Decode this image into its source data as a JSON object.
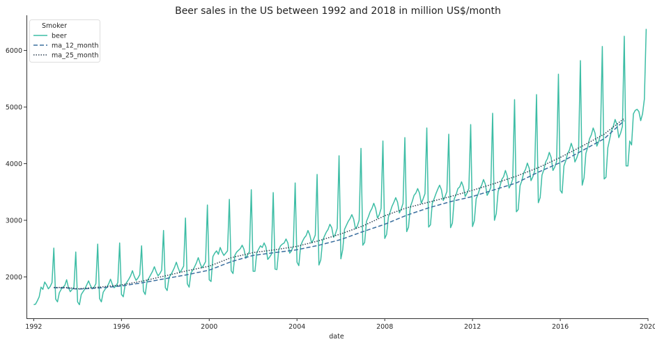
{
  "chart_data": {
    "type": "line",
    "title": "Beer sales in the US between 1992 and 2018 in million US$/month",
    "xlabel": "date",
    "ylabel": "",
    "xlim": [
      1991.67,
      2020.0
    ],
    "ylim": [
      1270,
      6620
    ],
    "x_ticks": [
      1992,
      1996,
      2000,
      2004,
      2008,
      2012,
      2016,
      2020
    ],
    "y_ticks": [
      2000,
      3000,
      4000,
      5000,
      6000
    ],
    "grid": false,
    "legend": {
      "title": "Smoker",
      "placement": "top-left"
    },
    "series": [
      {
        "name": "beer",
        "color": "#3dbda5",
        "style": "solid",
        "x_start": 1992.0,
        "x_step": 0.0833333,
        "values": [
          1510,
          1520,
          1580,
          1650,
          1820,
          1780,
          1910,
          1860,
          1790,
          1830,
          1900,
          2510,
          1610,
          1560,
          1720,
          1780,
          1820,
          1850,
          1950,
          1810,
          1740,
          1780,
          1820,
          2440,
          1560,
          1510,
          1690,
          1740,
          1790,
          1860,
          1930,
          1850,
          1790,
          1820,
          1880,
          2580,
          1620,
          1560,
          1730,
          1780,
          1820,
          1880,
          1960,
          1870,
          1810,
          1840,
          1900,
          2600,
          1690,
          1650,
          1860,
          1910,
          1960,
          2020,
          2110,
          2010,
          1940,
          1980,
          2040,
          2550,
          1750,
          1690,
          1930,
          1980,
          2040,
          2100,
          2180,
          2090,
          2020,
          2060,
          2120,
          2820,
          1810,
          1760,
          1990,
          2040,
          2100,
          2170,
          2260,
          2160,
          2080,
          2130,
          2190,
          3040,
          1880,
          1820,
          2070,
          2120,
          2180,
          2250,
          2340,
          2240,
          2160,
          2210,
          2270,
          3270,
          1950,
          1920,
          2360,
          2420,
          2460,
          2400,
          2520,
          2440,
          2380,
          2420,
          2460,
          3370,
          2110,
          2060,
          2380,
          2440,
          2470,
          2500,
          2560,
          2490,
          2330,
          2390,
          2450,
          3540,
          2100,
          2100,
          2430,
          2490,
          2550,
          2520,
          2600,
          2530,
          2310,
          2350,
          2400,
          3490,
          2140,
          2130,
          2480,
          2550,
          2580,
          2600,
          2670,
          2600,
          2420,
          2460,
          2550,
          3660,
          2260,
          2200,
          2550,
          2630,
          2690,
          2730,
          2820,
          2740,
          2600,
          2660,
          2740,
          3810,
          2210,
          2300,
          2640,
          2720,
          2790,
          2840,
          2930,
          2870,
          2700,
          2760,
          2860,
          4140,
          2320,
          2480,
          2840,
          2910,
          2980,
          3030,
          3100,
          3020,
          2850,
          2900,
          3000,
          4270,
          2560,
          2610,
          2980,
          3060,
          3150,
          3210,
          3300,
          3210,
          3040,
          3100,
          3210,
          4400,
          2680,
          2750,
          3060,
          3150,
          3250,
          3320,
          3400,
          3320,
          3130,
          3200,
          3300,
          4460,
          2800,
          2880,
          3240,
          3330,
          3440,
          3480,
          3560,
          3480,
          3300,
          3380,
          3470,
          4630,
          2880,
          2920,
          3300,
          3380,
          3470,
          3550,
          3620,
          3540,
          3350,
          3420,
          3510,
          4520,
          2870,
          2950,
          3380,
          3450,
          3560,
          3590,
          3680,
          3590,
          3420,
          3480,
          3560,
          4690,
          2890,
          2990,
          3380,
          3460,
          3560,
          3620,
          3720,
          3640,
          3440,
          3500,
          3580,
          4890,
          3000,
          3120,
          3510,
          3600,
          3720,
          3770,
          3880,
          3780,
          3570,
          3630,
          3730,
          5130,
          3150,
          3190,
          3610,
          3700,
          3840,
          3900,
          4010,
          3920,
          3700,
          3770,
          3870,
          5220,
          3310,
          3400,
          3800,
          3890,
          4030,
          4090,
          4200,
          4110,
          3880,
          3940,
          4040,
          5580,
          3530,
          3480,
          3960,
          4050,
          4180,
          4240,
          4360,
          4260,
          4030,
          4100,
          4200,
          5820,
          3620,
          3750,
          4180,
          4290,
          4440,
          4510,
          4630,
          4540,
          4310,
          4390,
          4510,
          6070,
          3730,
          3760,
          4280,
          4430,
          4580,
          4660,
          4780,
          4690,
          4460,
          4540,
          4660,
          6250,
          3960,
          3960,
          4400,
          4330,
          4880,
          4940,
          4960,
          4920,
          4760,
          4880,
          5140,
          6380
        ]
      },
      {
        "name": "ma_12_month",
        "color": "#3a6e9e",
        "style": "dashed",
        "x_start": 1992.917,
        "x_step": 0.0833333,
        "anchors_x": [
          1992.917,
          1993.5,
          1994.0,
          1995.0,
          1996.0,
          1997.0,
          1998.0,
          1999.0,
          2000.0,
          2001.0,
          2002.0,
          2003.0,
          2004.0,
          2005.0,
          2006.0,
          2007.0,
          2008.0,
          2009.0,
          2010.0,
          2011.0,
          2012.0,
          2013.0,
          2014.0,
          2015.0,
          2016.0,
          2017.0,
          2018.0,
          2018.917
        ],
        "anchors_y": [
          1810,
          1805,
          1785,
          1805,
          1840,
          1900,
          1970,
          2040,
          2120,
          2270,
          2380,
          2430,
          2480,
          2560,
          2660,
          2800,
          2930,
          3090,
          3220,
          3330,
          3420,
          3540,
          3660,
          3850,
          4020,
          4230,
          4440,
          4760
        ]
      },
      {
        "name": "ma_25_month",
        "color": "#2c3e50",
        "style": "dotted",
        "x_start": 1992.917,
        "x_step": 0.0833333,
        "anchors_x": [
          1992.917,
          1993.5,
          1994.0,
          1995.0,
          1996.0,
          1997.0,
          1998.0,
          1999.0,
          2000.0,
          2001.0,
          2002.0,
          2003.0,
          2004.0,
          2005.0,
          2006.0,
          2007.0,
          2008.0,
          2009.0,
          2010.0,
          2011.0,
          2012.0,
          2013.0,
          2014.0,
          2015.0,
          2016.0,
          2017.0,
          2018.0,
          2018.917
        ],
        "anchors_y": [
          1815,
          1815,
          1790,
          1820,
          1860,
          1930,
          2020,
          2110,
          2190,
          2340,
          2430,
          2480,
          2540,
          2640,
          2760,
          2900,
          3080,
          3220,
          3320,
          3420,
          3530,
          3650,
          3780,
          3930,
          4110,
          4310,
          4520,
          4800
        ]
      }
    ]
  }
}
